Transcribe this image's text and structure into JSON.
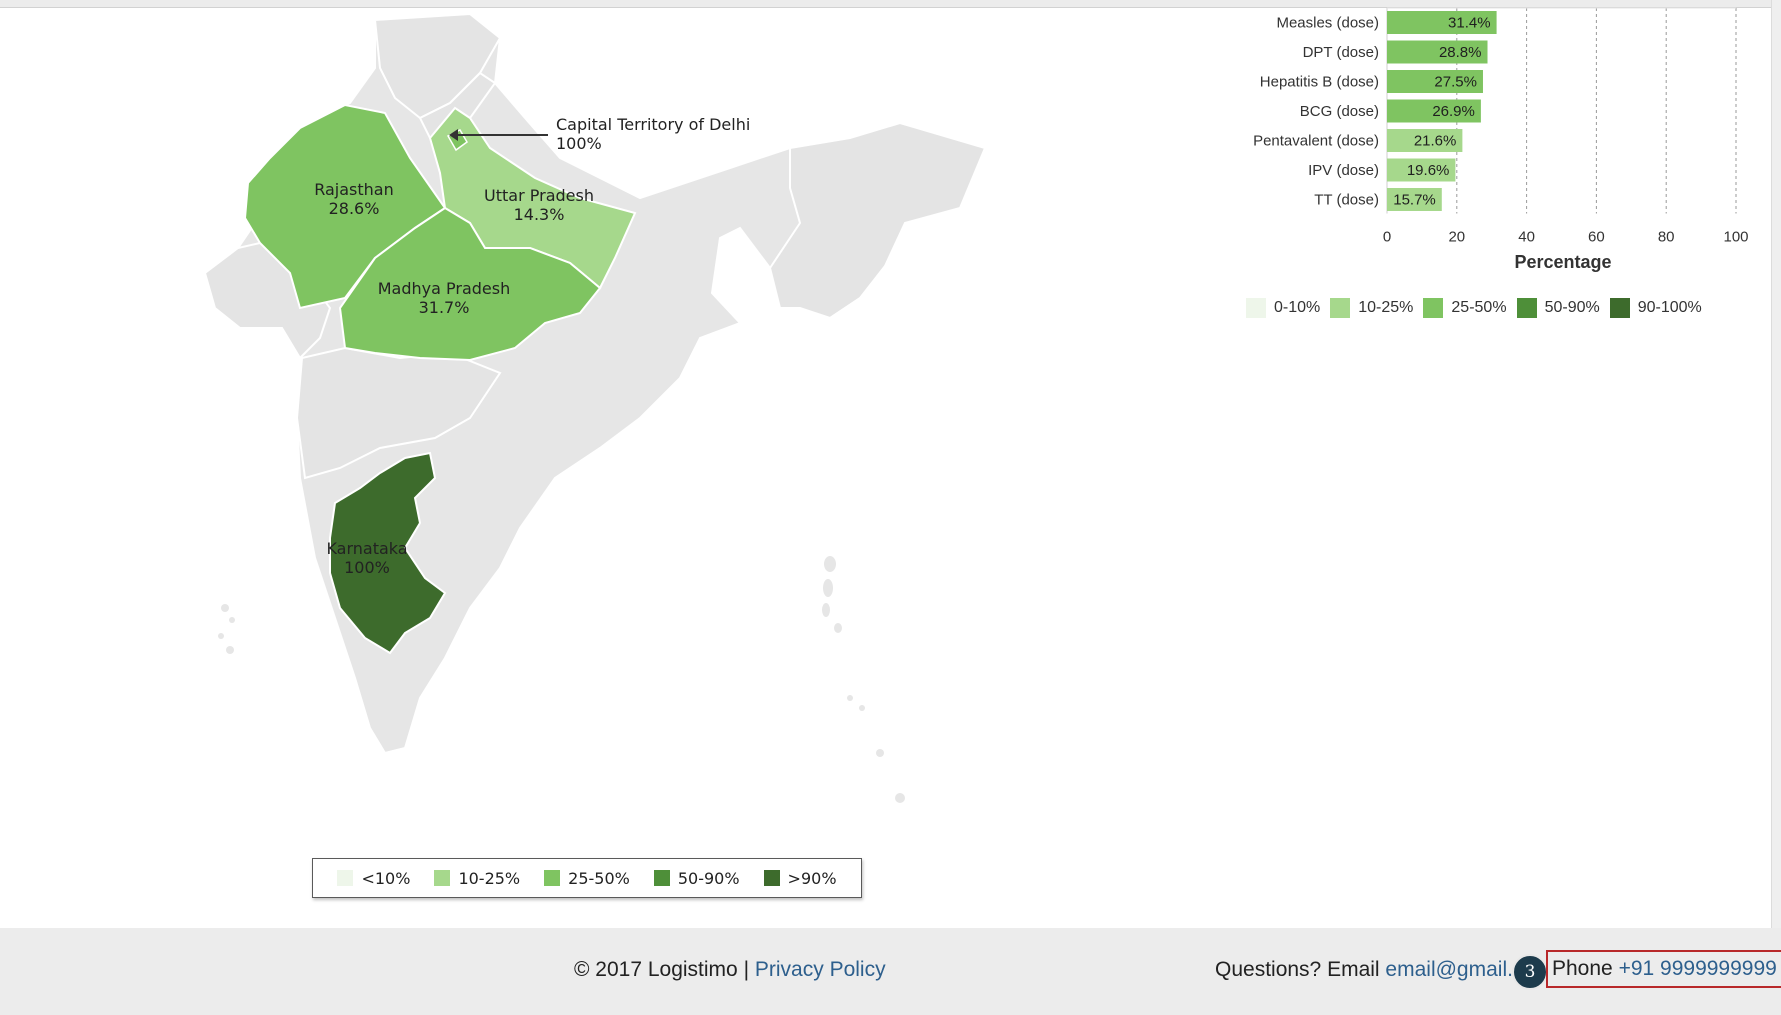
{
  "map": {
    "states": [
      {
        "name": "Rajasthan",
        "value": "28.6%",
        "color": "#7fc461"
      },
      {
        "name": "Uttar Pradesh",
        "value": "14.3%",
        "color": "#a6d88c"
      },
      {
        "name": "Madhya Pradesh",
        "value": "31.7%",
        "color": "#7fc461"
      },
      {
        "name": "Karnataka",
        "value": "100%",
        "color": "#3d6b2c"
      }
    ],
    "callout": {
      "name": "Capital Territory of Delhi",
      "value": "100%"
    },
    "legend": [
      {
        "label": "<10%",
        "color": "#eef6ea"
      },
      {
        "label": "10-25%",
        "color": "#a6d88c"
      },
      {
        "label": "25-50%",
        "color": "#7fc461"
      },
      {
        "label": "50-90%",
        "color": "#4e8f39"
      },
      {
        "label": ">90%",
        "color": "#3d6b2c"
      }
    ]
  },
  "chart_data": {
    "type": "bar",
    "orientation": "horizontal",
    "categories": [
      "Measles (dose)",
      "DPT (dose)",
      "Hepatitis B (dose)",
      "BCG (dose)",
      "Pentavalent (dose)",
      "IPV (dose)",
      "TT (dose)"
    ],
    "values": [
      31.4,
      28.8,
      27.5,
      26.9,
      21.6,
      19.6,
      15.7
    ],
    "value_labels": [
      "31.4%",
      "28.8%",
      "27.5%",
      "26.9%",
      "21.6%",
      "19.6%",
      "15.7%"
    ],
    "bar_colors": [
      "#7fc461",
      "#7fc461",
      "#7fc461",
      "#7fc461",
      "#a6d88c",
      "#a6d88c",
      "#a6d88c"
    ],
    "xlabel": "Percentage",
    "xlim": [
      0,
      100
    ],
    "xticks": [
      "0",
      "20",
      "40",
      "60",
      "80",
      "100"
    ],
    "grid": "vertical dashed",
    "legend_position": "bottom",
    "legend": [
      {
        "label": "0-10%",
        "color": "#eef6ea"
      },
      {
        "label": "10-25%",
        "color": "#a6d88c"
      },
      {
        "label": "25-50%",
        "color": "#7fc461"
      },
      {
        "label": "50-90%",
        "color": "#4e8f39"
      },
      {
        "label": "90-100%",
        "color": "#3d6b2c"
      }
    ]
  },
  "footer": {
    "copyright": "© 2017 Logistimo",
    "separator": "|",
    "privacy": "Privacy Policy",
    "questions": "Questions? Email",
    "email": "email@gmail.co",
    "step": "3",
    "phone_label": "Phone",
    "phone_number": "+91 9999999999"
  }
}
